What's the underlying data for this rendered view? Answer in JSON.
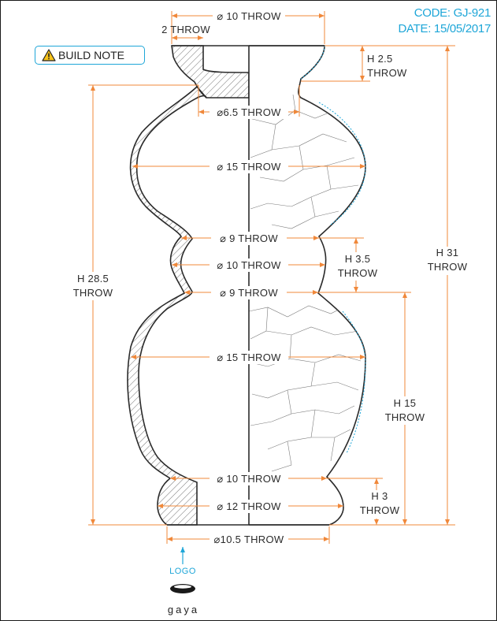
{
  "header": {
    "code": "CODE: GJ-921",
    "date": "DATE: 15/05/2017"
  },
  "build_note": {
    "label": "BUILD NOTE",
    "icon": "warning-icon"
  },
  "dimensions": {
    "top_diameter": "⌀ 10 THROW",
    "wall_thickness": "2 THROW",
    "neck_height_1": "H 2.5",
    "neck_height_2": "THROW",
    "neck_diameter": "⌀6.5 THROW",
    "upper_belly_diameter": "⌀ 15 THROW",
    "waist_upper_diameter": "⌀ 9 THROW",
    "waist_mid_diameter": "⌀ 10 THROW",
    "waist_lower_diameter": "⌀ 9 THROW",
    "waist_height_1": "H 3.5",
    "waist_height_2": "THROW",
    "lower_belly_diameter": "⌀ 15 THROW",
    "foot_neck_diameter": "⌀ 10 THROW",
    "foot_diameter": "⌀ 12 THROW",
    "base_diameter": "⌀10.5 THROW",
    "inner_height_1": "H 28.5",
    "inner_height_2": "THROW",
    "total_height_1": "H 31",
    "total_height_2": "THROW",
    "lower_height_1": "H 15",
    "lower_height_2": "THROW",
    "foot_height_1": "H 3",
    "foot_height_2": "THROW"
  },
  "logo": {
    "label": "LOGO",
    "brand": "gaya"
  },
  "colors": {
    "dimension": "#f0883a",
    "accent": "#1ea6d8",
    "outline": "#2b2b2b"
  }
}
